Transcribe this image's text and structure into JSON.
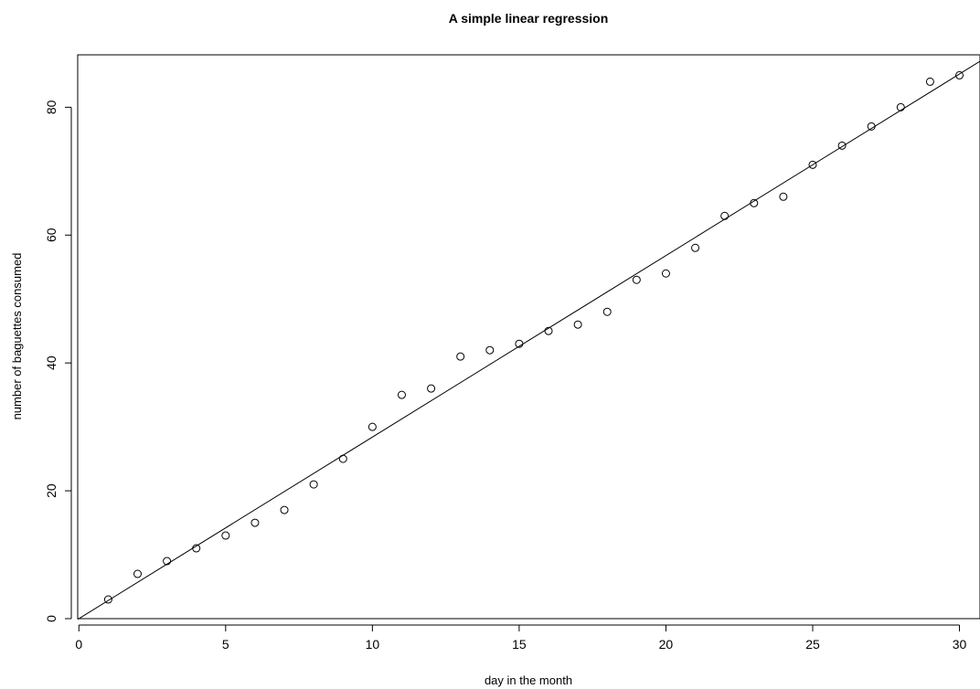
{
  "chart_data": {
    "type": "scatter",
    "title": "A simple linear regression",
    "xlabel": "day in the month",
    "ylabel": "number of baguettes consumed",
    "xlim": [
      -0.04,
      30.7
    ],
    "ylim": [
      0,
      88.2
    ],
    "x_ticks": [
      0,
      5,
      10,
      15,
      20,
      25,
      30
    ],
    "y_ticks": [
      0,
      20,
      40,
      60,
      80
    ],
    "x_tick_labels": [
      "0",
      "5",
      "10",
      "15",
      "20",
      "25",
      "30"
    ],
    "y_tick_labels": [
      "0",
      "20",
      "40",
      "60",
      "80"
    ],
    "grid": false,
    "points": {
      "x": [
        1,
        2,
        3,
        4,
        5,
        6,
        7,
        8,
        9,
        10,
        11,
        12,
        13,
        14,
        15,
        16,
        17,
        18,
        19,
        20,
        21,
        22,
        23,
        24,
        25,
        26,
        27,
        28,
        29,
        30
      ],
      "y": [
        3,
        7,
        9,
        11,
        13,
        15,
        17,
        21,
        25,
        30,
        35,
        36,
        41,
        42,
        43,
        45,
        46,
        48,
        53,
        54,
        58,
        63,
        65,
        66,
        71,
        74,
        77,
        80,
        84,
        85
      ]
    },
    "regression_line": {
      "intercept": 0,
      "slope": 2.84
    },
    "marker": "open-circle",
    "color": "#000000"
  }
}
